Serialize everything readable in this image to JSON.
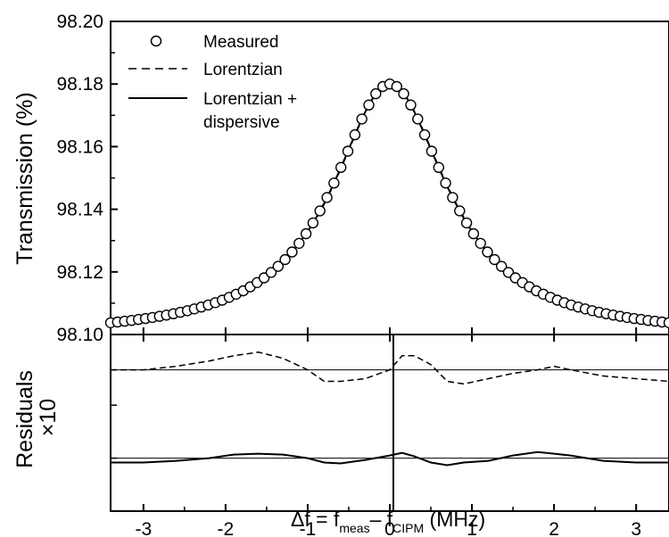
{
  "chart_data": [
    {
      "type": "scatter",
      "panel": "main",
      "ylabel": "Transmission (%)",
      "xlim": [
        -3.4,
        3.4
      ],
      "ylim": [
        98.1,
        98.2
      ],
      "y_ticks": [
        "98.10",
        "98.12",
        "98.14",
        "98.16",
        "98.18",
        "98.20"
      ],
      "legend_position": "top-left",
      "legend": [
        {
          "label": "Measured",
          "style": "open-circle"
        },
        {
          "label": "Lorentzian",
          "style": "dashed"
        },
        {
          "label": "Lorentzian +",
          "style": "solid"
        },
        {
          "label": "dispersive",
          "style": "none"
        }
      ],
      "peak": {
        "x": 0.0,
        "y": 98.18
      },
      "baseline": 98.099,
      "amplitude": 0.081,
      "half_width_MHz": 0.85,
      "x_step": 0.085,
      "series": [
        {
          "name": "Measured",
          "marker": "open-circle"
        },
        {
          "name": "Lorentzian",
          "line": "dashed"
        },
        {
          "name": "Lorentzian + dispersive",
          "line": "solid"
        }
      ]
    },
    {
      "type": "line",
      "panel": "residuals",
      "ylabel": "Residuals",
      "ylabel2": "×10",
      "xlabel_parts": {
        "delta": "Δf = f",
        "sub1": "meas",
        "dash": "– f",
        "sub2": "CIPM",
        "unit": " (MHz)"
      },
      "xlim": [
        -3.4,
        3.4
      ],
      "ylim": [
        -1,
        1
      ],
      "x_ticks": [
        "-3",
        "-2",
        "-1",
        "0",
        "1",
        "2",
        "3"
      ],
      "x_tick_values": [
        -3,
        -2,
        -1,
        0,
        1,
        2,
        3
      ],
      "reference_lines": [
        0.6,
        -0.4
      ],
      "series": [
        {
          "name": "Lorentzian",
          "line": "dashed",
          "offset": 0.6,
          "x": [
            -3.4,
            -3.0,
            -2.6,
            -2.2,
            -1.9,
            -1.6,
            -1.3,
            -1.0,
            -0.8,
            -0.6,
            -0.3,
            0.0,
            0.15,
            0.3,
            0.5,
            0.7,
            0.9,
            1.2,
            1.5,
            1.8,
            2.0,
            2.2,
            2.6,
            3.0,
            3.4
          ],
          "values": [
            0.0,
            0.0,
            0.04,
            0.1,
            0.16,
            0.2,
            0.13,
            0.0,
            -0.13,
            -0.13,
            -0.1,
            0.0,
            0.16,
            0.16,
            0.06,
            -0.13,
            -0.16,
            -0.1,
            -0.04,
            0.0,
            0.04,
            0.0,
            -0.07,
            -0.1,
            -0.13
          ]
        },
        {
          "name": "Lorentzian + dispersive",
          "line": "solid",
          "offset": -0.4,
          "x": [
            -3.4,
            -3.0,
            -2.6,
            -2.2,
            -1.9,
            -1.6,
            -1.3,
            -1.0,
            -0.8,
            -0.6,
            -0.3,
            0.0,
            0.15,
            0.3,
            0.5,
            0.7,
            0.9,
            1.2,
            1.5,
            1.8,
            2.0,
            2.2,
            2.6,
            3.0,
            3.4
          ],
          "values": [
            -0.05,
            -0.05,
            -0.03,
            0.0,
            0.04,
            0.05,
            0.04,
            0.0,
            -0.05,
            -0.06,
            -0.02,
            0.03,
            0.06,
            0.02,
            -0.05,
            -0.08,
            -0.05,
            -0.03,
            0.03,
            0.07,
            0.05,
            0.03,
            -0.03,
            -0.05,
            -0.05
          ]
        }
      ]
    }
  ]
}
